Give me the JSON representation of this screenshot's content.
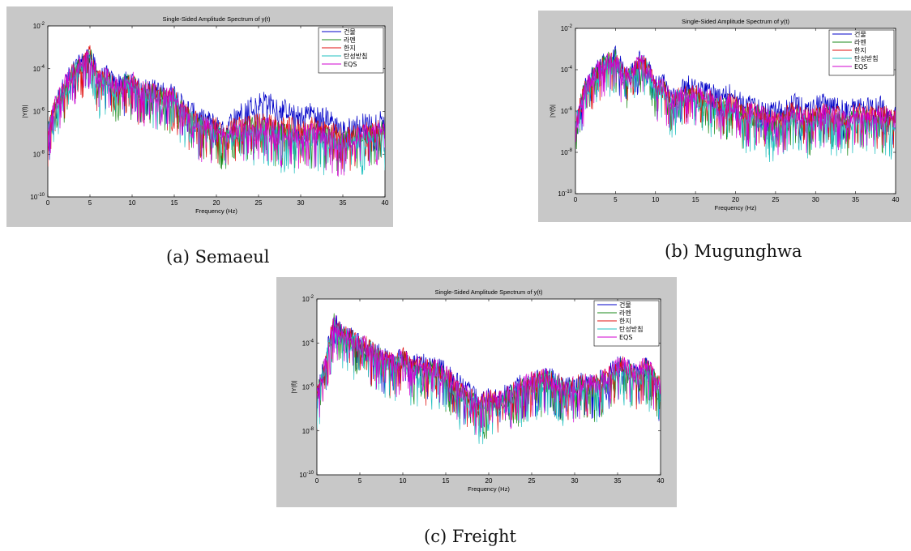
{
  "chart_data": [
    {
      "type": "line",
      "caption": "(a)  Semaeul",
      "title": "Single-Sided Amplitude Spectrum of y(t)",
      "xlabel": "Frequency (Hz)",
      "ylabel": "|Y(f)|",
      "xlim": [
        0,
        40
      ],
      "ylim": [
        1e-10,
        0.01
      ],
      "yscale": "log",
      "x_ticks": [
        0,
        5,
        10,
        15,
        20,
        25,
        30,
        35,
        40
      ],
      "y_ticks": [
        1e-10,
        1e-08,
        1e-06,
        0.0001,
        0.01
      ],
      "y_tick_labels": [
        {
          "base": "10",
          "exp": "-10"
        },
        {
          "base": "10",
          "exp": "-8"
        },
        {
          "base": "10",
          "exp": "-6"
        },
        {
          "base": "10",
          "exp": "-4"
        },
        {
          "base": "10",
          "exp": "-2"
        }
      ],
      "legend": "top-right",
      "x": [
        0,
        1,
        2,
        3,
        4,
        5,
        6,
        7,
        8,
        9,
        10,
        11,
        12,
        13,
        14,
        15,
        16,
        17,
        18,
        19,
        20,
        21,
        22,
        23,
        24,
        25,
        26,
        27,
        28,
        29,
        30,
        31,
        32,
        33,
        34,
        35,
        36,
        37,
        38,
        39,
        40
      ],
      "series": [
        {
          "name": "건물",
          "color": "#0000c8",
          "values": [
            1e-07,
            3e-06,
            2e-05,
            0.0001,
            0.0002,
            0.0006,
            4e-05,
            5e-05,
            2e-05,
            3e-05,
            3e-05,
            1e-05,
            1.5e-05,
            1e-05,
            8e-06,
            8e-06,
            2e-06,
            1.2e-06,
            5e-07,
            4e-07,
            3e-07,
            1e-07,
            6e-07,
            1e-06,
            2e-06,
            3e-06,
            4e-06,
            1.5e-06,
            1.5e-06,
            8e-07,
            6e-07,
            1e-06,
            8e-07,
            6e-07,
            3e-07,
            1.5e-07,
            2e-07,
            3e-07,
            3e-07,
            4e-07,
            6e-07
          ]
        },
        {
          "name": "라멘",
          "color": "#1a8a1a",
          "values": [
            1e-07,
            2e-06,
            1e-05,
            8e-05,
            0.00015,
            0.0005,
            2e-05,
            3e-05,
            1e-05,
            2e-05,
            2e-05,
            8e-06,
            1e-05,
            6e-06,
            4e-06,
            5e-06,
            1e-06,
            5e-07,
            2e-07,
            2e-07,
            1e-07,
            5e-08,
            1e-07,
            1.5e-07,
            2e-07,
            2e-07,
            2e-07,
            1.2e-07,
            1e-07,
            1e-07,
            8e-08,
            1e-07,
            1e-07,
            8e-08,
            6e-08,
            4e-08,
            6e-08,
            8e-08,
            1e-07,
            1e-07,
            1.5e-07
          ]
        },
        {
          "name": "한지",
          "color": "#e01010",
          "values": [
            1e-07,
            3e-06,
            1e-05,
            8e-05,
            0.00015,
            0.0005,
            3e-05,
            4e-05,
            1.5e-05,
            2e-05,
            2e-05,
            1e-05,
            1e-05,
            6e-06,
            5e-06,
            5e-06,
            1e-06,
            6e-07,
            3e-07,
            3e-07,
            2e-07,
            8e-08,
            2e-07,
            2e-07,
            3e-07,
            3e-07,
            3e-07,
            2e-07,
            2e-07,
            2e-07,
            1.5e-07,
            2e-07,
            2e-07,
            1.5e-07,
            1e-07,
            6e-08,
            8e-08,
            1e-07,
            1.5e-07,
            1.5e-07,
            2e-07
          ]
        },
        {
          "name": "탄성받침",
          "color": "#20c0c0",
          "values": [
            1e-07,
            2e-06,
            1e-05,
            6e-05,
            0.00012,
            0.0004,
            2e-05,
            3e-05,
            1e-05,
            2e-05,
            2e-05,
            8e-06,
            8e-06,
            5e-06,
            4e-06,
            4e-06,
            8e-07,
            5e-07,
            2e-07,
            2e-07,
            1e-07,
            5e-08,
            8e-08,
            1e-07,
            1e-07,
            1e-07,
            1e-07,
            8e-08,
            6e-08,
            6e-08,
            5e-08,
            6e-08,
            6e-08,
            5e-08,
            4e-08,
            3e-08,
            4e-08,
            5e-08,
            6e-08,
            6e-08,
            8e-08
          ]
        },
        {
          "name": "EQS",
          "color": "#d000d0",
          "values": [
            1e-07,
            3e-06,
            2e-05,
            8e-05,
            0.00015,
            0.0005,
            3e-05,
            4e-05,
            1.5e-05,
            2e-05,
            3e-05,
            1e-05,
            1e-05,
            6e-06,
            5e-06,
            5e-06,
            1e-06,
            6e-07,
            2e-07,
            2e-07,
            1e-07,
            6e-08,
            1e-07,
            1.5e-07,
            2e-07,
            2e-07,
            2e-07,
            1.5e-07,
            1e-07,
            1e-07,
            8e-08,
            1e-07,
            1e-07,
            8e-08,
            5e-08,
            4e-08,
            5e-08,
            8e-08,
            1e-07,
            1e-07,
            1.5e-07
          ]
        }
      ]
    },
    {
      "type": "line",
      "caption": "(b)  Mugunghwa",
      "title": "Single-Sided Amplitude Spectrum of y(t)",
      "xlabel": "Frequency (Hz)",
      "ylabel": "|Y(f)|",
      "xlim": [
        0,
        40
      ],
      "ylim": [
        1e-10,
        0.01
      ],
      "yscale": "log",
      "x_ticks": [
        0,
        5,
        10,
        15,
        20,
        25,
        30,
        35,
        40
      ],
      "y_ticks": [
        1e-10,
        1e-08,
        1e-06,
        0.0001,
        0.01
      ],
      "y_tick_labels": [
        {
          "base": "10",
          "exp": "-10"
        },
        {
          "base": "10",
          "exp": "-8"
        },
        {
          "base": "10",
          "exp": "-6"
        },
        {
          "base": "10",
          "exp": "-4"
        },
        {
          "base": "10",
          "exp": "-2"
        }
      ],
      "legend": "top-right",
      "x": [
        0,
        1,
        2,
        3,
        4,
        5,
        6,
        7,
        8,
        9,
        10,
        11,
        12,
        13,
        14,
        15,
        16,
        17,
        18,
        19,
        20,
        21,
        22,
        23,
        24,
        25,
        26,
        27,
        28,
        29,
        30,
        31,
        32,
        33,
        34,
        35,
        36,
        37,
        38,
        39,
        40
      ],
      "series": [
        {
          "name": "건물",
          "color": "#0000c8",
          "values": [
            2e-07,
            1e-05,
            5e-05,
            0.00015,
            0.0003,
            0.0005,
            0.0001,
            8e-05,
            0.0003,
            0.00015,
            2e-05,
            3e-05,
            5e-06,
            1e-05,
            2e-05,
            1.5e-05,
            1e-05,
            8e-06,
            5e-06,
            8e-06,
            5e-06,
            2e-06,
            3e-06,
            2e-06,
            1.5e-06,
            1e-06,
            1.5e-06,
            3e-06,
            2e-06,
            1e-06,
            2e-06,
            3e-06,
            2e-06,
            1.5e-06,
            1e-06,
            3e-06,
            2e-06,
            1.5e-06,
            2e-06,
            1.5e-06,
            1e-06
          ]
        },
        {
          "name": "라멘",
          "color": "#1a8a1a",
          "values": [
            2e-07,
            8e-06,
            4e-05,
            0.00012,
            0.00025,
            0.0004,
            6e-05,
            5e-05,
            0.0002,
            0.0001,
            1e-05,
            1.5e-05,
            2e-06,
            5e-06,
            6e-06,
            5e-06,
            4e-06,
            3e-06,
            1.5e-06,
            2e-06,
            1.5e-06,
            6e-07,
            8e-07,
            6e-07,
            4e-07,
            3e-07,
            4e-07,
            6e-07,
            5e-07,
            3e-07,
            5e-07,
            6e-07,
            5e-07,
            4e-07,
            3e-07,
            6e-07,
            5e-07,
            4e-07,
            5e-07,
            4e-07,
            3e-07
          ]
        },
        {
          "name": "한지",
          "color": "#e01010",
          "values": [
            2e-07,
            8e-06,
            4e-05,
            0.00012,
            0.00025,
            0.0004,
            6e-05,
            5e-05,
            0.00025,
            0.00012,
            1.5e-05,
            2e-05,
            3e-06,
            6e-06,
            1e-05,
            8e-06,
            5e-06,
            4e-06,
            2e-06,
            3e-06,
            2e-06,
            8e-07,
            1e-06,
            8e-07,
            6e-07,
            4e-07,
            6e-07,
            1e-06,
            8e-07,
            5e-07,
            8e-07,
            1e-06,
            8e-07,
            6e-07,
            5e-07,
            1e-06,
            8e-07,
            6e-07,
            8e-07,
            6e-07,
            5e-07
          ]
        },
        {
          "name": "탄성받침",
          "color": "#20c0c0",
          "values": [
            2e-07,
            6e-06,
            3e-05,
            0.0001,
            0.0002,
            0.0003,
            5e-05,
            4e-05,
            0.0002,
            8e-05,
            8e-06,
            1e-05,
            2e-06,
            4e-06,
            5e-06,
            4e-06,
            3e-06,
            2e-06,
            1e-06,
            1.5e-06,
            1e-06,
            4e-07,
            5e-07,
            4e-07,
            2e-07,
            6e-08,
            2e-07,
            4e-07,
            3e-07,
            2e-07,
            3e-07,
            4e-07,
            3e-07,
            2e-07,
            2e-07,
            4e-07,
            3e-07,
            2e-07,
            3e-07,
            2e-07,
            2e-07
          ]
        },
        {
          "name": "EQS",
          "color": "#d000d0",
          "values": [
            2e-07,
            8e-06,
            4e-05,
            0.00012,
            0.00025,
            0.0004,
            6e-05,
            5e-05,
            0.00025,
            0.00012,
            1.2e-05,
            1.8e-05,
            3e-06,
            6e-06,
            8e-06,
            6e-06,
            5e-06,
            4e-06,
            2e-06,
            2.5e-06,
            2e-06,
            8e-07,
            1e-06,
            8e-07,
            5e-07,
            3e-07,
            5e-07,
            8e-07,
            6e-07,
            4e-07,
            6e-07,
            8e-07,
            6e-07,
            5e-07,
            4e-07,
            8e-07,
            6e-07,
            5e-07,
            6e-07,
            5e-07,
            4e-07
          ]
        }
      ]
    },
    {
      "type": "line",
      "caption": "(c)  Freight",
      "title": "Single-Sided Amplitude Spectrum of y(t)",
      "xlabel": "Frequency (Hz)",
      "ylabel": "|Y(f)|",
      "xlim": [
        0,
        40
      ],
      "ylim": [
        1e-10,
        0.01
      ],
      "yscale": "log",
      "x_ticks": [
        0,
        5,
        10,
        15,
        20,
        25,
        30,
        35,
        40
      ],
      "y_ticks": [
        1e-10,
        1e-08,
        1e-06,
        0.0001,
        0.01
      ],
      "y_tick_labels": [
        {
          "base": "10",
          "exp": "-10"
        },
        {
          "base": "10",
          "exp": "-8"
        },
        {
          "base": "10",
          "exp": "-6"
        },
        {
          "base": "10",
          "exp": "-4"
        },
        {
          "base": "10",
          "exp": "-2"
        }
      ],
      "legend": "top-right",
      "x": [
        0,
        1,
        2,
        3,
        4,
        5,
        6,
        7,
        8,
        9,
        10,
        11,
        12,
        13,
        14,
        15,
        16,
        17,
        18,
        19,
        20,
        21,
        22,
        23,
        24,
        25,
        26,
        27,
        28,
        29,
        30,
        31,
        32,
        33,
        34,
        35,
        36,
        37,
        38,
        39,
        40
      ],
      "series": [
        {
          "name": "건물",
          "color": "#0000c8",
          "values": [
            3e-07,
            2e-05,
            0.001,
            0.0003,
            0.0002,
            0.0001,
            8e-05,
            4e-05,
            2e-05,
            1.5e-05,
            3e-05,
            1e-05,
            1.5e-05,
            8e-06,
            1e-05,
            5e-06,
            2e-06,
            1e-06,
            5e-07,
            3e-07,
            4e-07,
            3e-07,
            5e-07,
            1e-06,
            1.5e-06,
            2e-06,
            2.5e-06,
            3e-06,
            2e-06,
            1e-06,
            1.5e-06,
            2e-06,
            1.5e-06,
            2e-06,
            5e-06,
            1e-05,
            1e-05,
            4e-06,
            1e-05,
            5e-06,
            1e-06
          ]
        },
        {
          "name": "라멘",
          "color": "#1a8a1a",
          "values": [
            3e-07,
            1.5e-05,
            0.0008,
            0.0002,
            0.00015,
            8e-05,
            6e-05,
            3e-05,
            1.5e-05,
            1e-05,
            2e-05,
            6e-06,
            8e-06,
            5e-06,
            6e-06,
            3e-06,
            1e-06,
            5e-07,
            2e-07,
            1.5e-07,
            2e-07,
            1.5e-07,
            3e-07,
            6e-07,
            1e-06,
            1.5e-06,
            2e-06,
            2.5e-06,
            1.5e-06,
            8e-07,
            1e-06,
            1.5e-06,
            1e-06,
            1.5e-06,
            4e-06,
            8e-06,
            8e-06,
            3e-06,
            8e-06,
            4e-06,
            8e-07
          ]
        },
        {
          "name": "한지",
          "color": "#e01010",
          "values": [
            3e-07,
            1.5e-05,
            0.0009,
            0.00025,
            0.00018,
            9e-05,
            7e-05,
            3.5e-05,
            1.8e-05,
            1.2e-05,
            2.5e-05,
            8e-06,
            1e-05,
            6e-06,
            8e-06,
            4e-06,
            1.5e-06,
            7e-07,
            3e-07,
            2e-07,
            3e-07,
            2e-07,
            4e-07,
            8e-07,
            1.2e-06,
            1.8e-06,
            2.2e-06,
            2.8e-06,
            1.8e-06,
            9e-07,
            1.2e-06,
            1.8e-06,
            1.2e-06,
            1.8e-06,
            4.5e-06,
            9e-06,
            9e-06,
            3.5e-06,
            9e-06,
            4.5e-06,
            9e-07
          ]
        },
        {
          "name": "탄성받침",
          "color": "#20c0c0",
          "values": [
            3e-07,
            1e-05,
            0.0007,
            0.0002,
            0.00012,
            7e-05,
            5e-05,
            2.5e-05,
            1.2e-05,
            8e-06,
            1.5e-05,
            5e-06,
            6e-06,
            4e-06,
            5e-06,
            2.5e-06,
            8e-07,
            4e-07,
            1.5e-07,
            1e-07,
            1.5e-07,
            1e-07,
            2e-07,
            5e-07,
            8e-07,
            1.2e-06,
            1.5e-06,
            2e-06,
            1.2e-06,
            6e-07,
            8e-07,
            1.2e-06,
            8e-07,
            1.2e-06,
            3e-06,
            6e-06,
            6e-06,
            2.5e-06,
            6e-06,
            3e-06,
            6e-07
          ]
        },
        {
          "name": "EQS",
          "color": "#d000d0",
          "values": [
            3e-07,
            1.5e-05,
            0.0009,
            0.00025,
            0.00018,
            9e-05,
            7e-05,
            3.5e-05,
            1.8e-05,
            1.2e-05,
            2.5e-05,
            8e-06,
            1e-05,
            6e-06,
            8e-06,
            4e-06,
            1.5e-06,
            7e-07,
            3e-07,
            2e-07,
            3e-07,
            2e-07,
            4e-07,
            8e-07,
            1.2e-06,
            1.8e-06,
            2.2e-06,
            2.8e-06,
            1.8e-06,
            9e-07,
            1.2e-06,
            1.8e-06,
            1.2e-06,
            1.8e-06,
            4.5e-06,
            9e-06,
            9e-06,
            3.5e-06,
            9e-06,
            4.5e-06,
            9e-07
          ]
        }
      ]
    }
  ]
}
